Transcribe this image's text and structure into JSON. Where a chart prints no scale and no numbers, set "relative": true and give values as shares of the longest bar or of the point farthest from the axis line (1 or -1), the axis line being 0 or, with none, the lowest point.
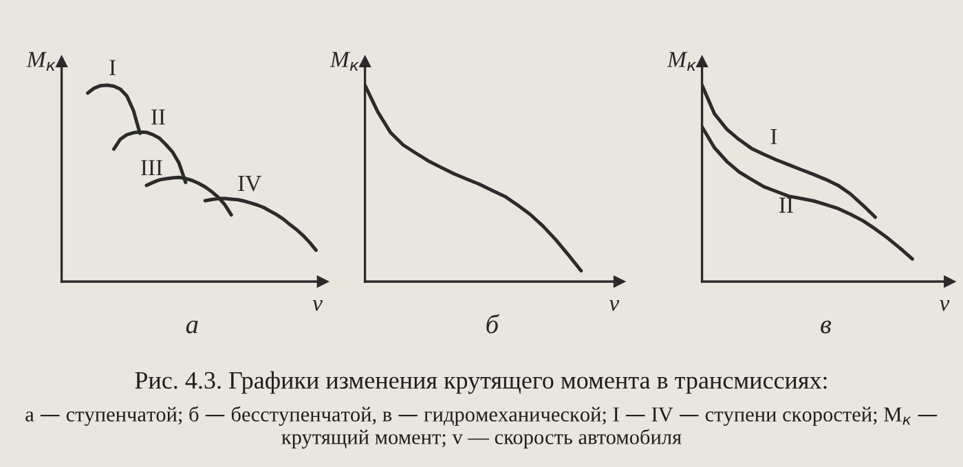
{
  "chart_data": [
    {
      "type": "line",
      "relative": true,
      "title": "а",
      "xlabel": "v",
      "ylabel": "M$_{к}$",
      "annotations": [
        "Рис. 4.3. Графики изменения крутящего момента в трансмиссиях:",
        "а — ступенчатой; б — бесступенчатой, в — гидромеханической; I — IV — ступени скоростей; M$_{к}$ — крутящий момент; v — скорость автомобиля"
      ],
      "categories": [
        null,
        null,
        null,
        null,
        null,
        null,
        null,
        null,
        null,
        null,
        null,
        null,
        null,
        null,
        null,
        null,
        null,
        null,
        null,
        null,
        null,
        null,
        null,
        null,
        null,
        null,
        null,
        null,
        null,
        null,
        null,
        null,
        null,
        null,
        null,
        null,
        null,
        null,
        null,
        null
      ],
      "series": [
        {
          "name": "I",
          "color": "#2b2b2b",
          "values": [
            null,
            null,
            null,
            null,
            0.96,
            0.985,
            0.998,
            1.0,
            0.995,
            0.98,
            0.945,
            0.872,
            0.755,
            null,
            null,
            null,
            null,
            null,
            null,
            null,
            null,
            null,
            null,
            null,
            null,
            null,
            null,
            null,
            null,
            null,
            null,
            null,
            null,
            null,
            null,
            null,
            null,
            null,
            null,
            null
          ]
        },
        {
          "name": "II",
          "color": "#2b2b2b",
          "values": [
            null,
            null,
            null,
            null,
            null,
            null,
            null,
            null,
            0.675,
            0.725,
            0.748,
            0.758,
            0.762,
            0.76,
            0.748,
            0.73,
            0.697,
            0.66,
            0.603,
            0.505,
            null,
            null,
            null,
            null,
            null,
            null,
            null,
            null,
            null,
            null,
            null,
            null,
            null,
            null,
            null,
            null,
            null,
            null,
            null,
            null
          ]
        },
        {
          "name": "III",
          "color": "#2b2b2b",
          "values": [
            null,
            null,
            null,
            null,
            null,
            null,
            null,
            null,
            null,
            null,
            null,
            null,
            null,
            0.49,
            0.505,
            0.518,
            0.524,
            0.528,
            0.531,
            0.525,
            0.515,
            0.5,
            0.482,
            0.458,
            0.43,
            0.392,
            0.34,
            null,
            null,
            null,
            null,
            null,
            null,
            null,
            null,
            null,
            null,
            null,
            null,
            null
          ]
        },
        {
          "name": "IV",
          "color": "#2b2b2b",
          "values": [
            null,
            null,
            null,
            null,
            null,
            null,
            null,
            null,
            null,
            null,
            null,
            null,
            null,
            null,
            null,
            null,
            null,
            null,
            null,
            null,
            null,
            null,
            0.412,
            0.418,
            0.422,
            0.423,
            0.42,
            0.417,
            0.41,
            0.4,
            0.39,
            0.377,
            0.358,
            0.34,
            0.318,
            0.29,
            0.265,
            0.235,
            0.2,
            0.16
          ]
        }
      ]
    },
    {
      "type": "line",
      "relative": true,
      "title": "б",
      "xlabel": "v",
      "ylabel": "M$_{к}$",
      "categories": [
        null,
        null,
        null,
        null,
        null,
        null,
        null,
        null,
        null,
        null,
        null,
        null,
        null,
        null,
        null,
        null,
        null,
        null,
        null,
        null
      ],
      "series": [
        {
          "color": "#2b2b2b",
          "values": [
            1.0,
            0.865,
            0.76,
            0.696,
            0.654,
            0.614,
            0.581,
            0.549,
            0.522,
            0.496,
            0.464,
            0.434,
            0.39,
            0.342,
            0.283,
            0.214,
            0.136,
            0.055,
            null,
            null
          ]
        }
      ]
    },
    {
      "type": "line",
      "relative": true,
      "title": "в",
      "xlabel": "v",
      "ylabel": "M$_{к}$",
      "categories": [
        null,
        null,
        null,
        null,
        null,
        null,
        null,
        null,
        null,
        null,
        null,
        null,
        null,
        null,
        null,
        null,
        null,
        null,
        null,
        null
      ],
      "series": [
        {
          "name": "I",
          "color": "#2b2b2b",
          "values": [
            1.0,
            0.855,
            0.776,
            0.723,
            0.678,
            0.648,
            0.62,
            0.595,
            0.57,
            0.546,
            0.52,
            0.49,
            0.446,
            0.389,
            0.328,
            null,
            null,
            null,
            null,
            null
          ]
        },
        {
          "name": "II",
          "color": "#2b2b2b",
          "values": [
            0.788,
            0.682,
            0.612,
            0.558,
            0.52,
            0.483,
            0.459,
            0.435,
            0.423,
            0.411,
            0.392,
            0.372,
            0.343,
            0.31,
            0.268,
            0.222,
            0.17,
            0.115,
            null,
            null
          ]
        }
      ]
    }
  ]
}
